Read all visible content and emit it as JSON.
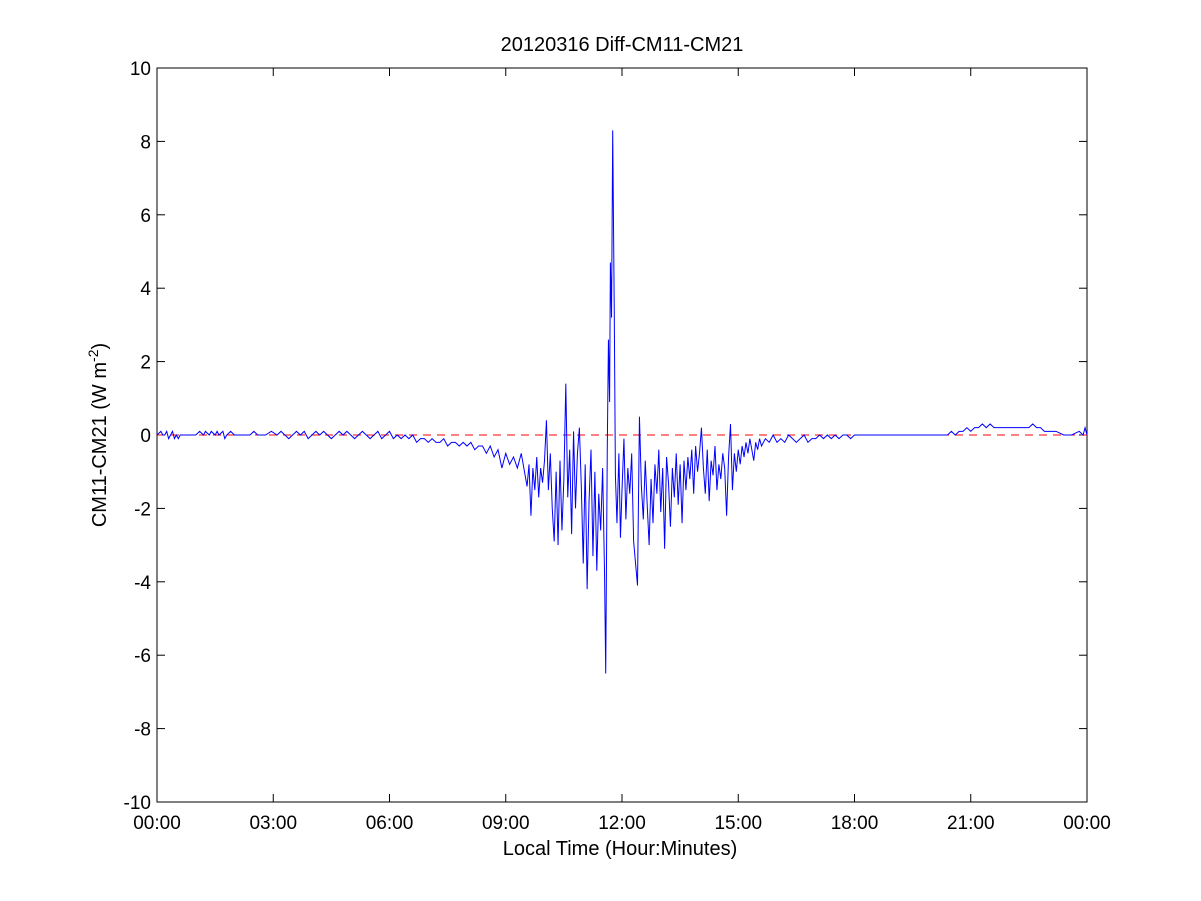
{
  "chart_data": {
    "type": "line",
    "title": "20120316 Diff-CM11-CM21",
    "xlabel": "Local Time (Hour:Minutes)",
    "ylabel": {
      "main": "CM11-CM21 (W m",
      "superscript": "-2",
      "close": ")"
    },
    "xlim_hours": [
      0,
      24
    ],
    "ylim": [
      -10,
      10
    ],
    "x_ticks": [
      {
        "hour": 0,
        "label": "00:00"
      },
      {
        "hour": 3,
        "label": "03:00"
      },
      {
        "hour": 6,
        "label": "06:00"
      },
      {
        "hour": 9,
        "label": "09:00"
      },
      {
        "hour": 12,
        "label": "12:00"
      },
      {
        "hour": 15,
        "label": "15:00"
      },
      {
        "hour": 18,
        "label": "18:00"
      },
      {
        "hour": 21,
        "label": "21:00"
      },
      {
        "hour": 24,
        "label": "00:00"
      }
    ],
    "y_ticks": [
      {
        "value": 10,
        "label": "10"
      },
      {
        "value": 8,
        "label": "8"
      },
      {
        "value": 6,
        "label": "6"
      },
      {
        "value": 4,
        "label": "4"
      },
      {
        "value": 2,
        "label": "2"
      },
      {
        "value": 0,
        "label": "0"
      },
      {
        "value": -2,
        "label": "-2"
      },
      {
        "value": -4,
        "label": "-4"
      },
      {
        "value": -6,
        "label": "-6"
      },
      {
        "value": -8,
        "label": "-8"
      },
      {
        "value": -10,
        "label": "-10"
      }
    ],
    "grid": false,
    "reference_line": {
      "y": 0,
      "style": "dashed",
      "color": "#ff0000"
    },
    "series": [
      {
        "color": "#0000ff",
        "points": [
          [
            0.0,
            0.0
          ],
          [
            0.1,
            0.1
          ],
          [
            0.15,
            0.0
          ],
          [
            0.2,
            0.0
          ],
          [
            0.25,
            0.1
          ],
          [
            0.3,
            -0.1
          ],
          [
            0.35,
            0.0
          ],
          [
            0.4,
            0.1
          ],
          [
            0.45,
            -0.1
          ],
          [
            0.5,
            0.0
          ],
          [
            0.55,
            -0.1
          ],
          [
            0.6,
            0.0
          ],
          [
            0.7,
            0.0
          ],
          [
            0.8,
            0.0
          ],
          [
            0.9,
            0.0
          ],
          [
            1.0,
            0.0
          ],
          [
            1.1,
            0.1
          ],
          [
            1.2,
            0.0
          ],
          [
            1.25,
            0.1
          ],
          [
            1.35,
            0.0
          ],
          [
            1.4,
            0.1
          ],
          [
            1.5,
            0.0
          ],
          [
            1.55,
            0.1
          ],
          [
            1.6,
            0.0
          ],
          [
            1.7,
            0.1
          ],
          [
            1.75,
            -0.1
          ],
          [
            1.8,
            0.0
          ],
          [
            1.9,
            0.1
          ],
          [
            2.0,
            0.0
          ],
          [
            2.2,
            0.0
          ],
          [
            2.4,
            0.0
          ],
          [
            2.5,
            0.1
          ],
          [
            2.6,
            0.0
          ],
          [
            2.8,
            0.0
          ],
          [
            2.95,
            0.1
          ],
          [
            3.1,
            0.0
          ],
          [
            3.2,
            0.1
          ],
          [
            3.3,
            0.0
          ],
          [
            3.4,
            -0.1
          ],
          [
            3.5,
            0.0
          ],
          [
            3.6,
            0.1
          ],
          [
            3.7,
            0.0
          ],
          [
            3.8,
            0.1
          ],
          [
            3.9,
            -0.1
          ],
          [
            4.0,
            0.0
          ],
          [
            4.1,
            0.1
          ],
          [
            4.2,
            0.0
          ],
          [
            4.3,
            0.1
          ],
          [
            4.4,
            0.0
          ],
          [
            4.5,
            -0.1
          ],
          [
            4.6,
            0.0
          ],
          [
            4.7,
            0.1
          ],
          [
            4.8,
            0.0
          ],
          [
            4.9,
            0.1
          ],
          [
            5.0,
            0.0
          ],
          [
            5.1,
            -0.1
          ],
          [
            5.2,
            0.0
          ],
          [
            5.3,
            0.1
          ],
          [
            5.4,
            0.0
          ],
          [
            5.5,
            -0.1
          ],
          [
            5.6,
            0.0
          ],
          [
            5.7,
            0.1
          ],
          [
            5.8,
            -0.1
          ],
          [
            5.9,
            0.0
          ],
          [
            6.0,
            0.1
          ],
          [
            6.1,
            -0.1
          ],
          [
            6.2,
            0.0
          ],
          [
            6.3,
            -0.1
          ],
          [
            6.4,
            0.0
          ],
          [
            6.5,
            -0.1
          ],
          [
            6.6,
            0.0
          ],
          [
            6.7,
            -0.2
          ],
          [
            6.8,
            -0.1
          ],
          [
            6.9,
            -0.1
          ],
          [
            7.0,
            -0.2
          ],
          [
            7.1,
            -0.1
          ],
          [
            7.2,
            -0.2
          ],
          [
            7.3,
            -0.2
          ],
          [
            7.4,
            -0.1
          ],
          [
            7.5,
            -0.3
          ],
          [
            7.6,
            -0.2
          ],
          [
            7.7,
            -0.2
          ],
          [
            7.8,
            -0.3
          ],
          [
            7.9,
            -0.2
          ],
          [
            8.0,
            -0.3
          ],
          [
            8.1,
            -0.2
          ],
          [
            8.2,
            -0.4
          ],
          [
            8.3,
            -0.3
          ],
          [
            8.4,
            -0.3
          ],
          [
            8.5,
            -0.5
          ],
          [
            8.6,
            -0.3
          ],
          [
            8.7,
            -0.6
          ],
          [
            8.8,
            -0.4
          ],
          [
            8.9,
            -0.9
          ],
          [
            9.0,
            -0.5
          ],
          [
            9.1,
            -0.8
          ],
          [
            9.2,
            -0.6
          ],
          [
            9.3,
            -0.9
          ],
          [
            9.4,
            -0.5
          ],
          [
            9.5,
            -1.1
          ],
          [
            9.55,
            -1.4
          ],
          [
            9.6,
            -0.8
          ],
          [
            9.65,
            -2.2
          ],
          [
            9.7,
            -0.9
          ],
          [
            9.75,
            -1.5
          ],
          [
            9.8,
            -0.6
          ],
          [
            9.85,
            -1.7
          ],
          [
            9.9,
            -0.9
          ],
          [
            9.95,
            -1.3
          ],
          [
            10.0,
            -0.7
          ],
          [
            10.05,
            0.4
          ],
          [
            10.1,
            -1.5
          ],
          [
            10.15,
            -0.5
          ],
          [
            10.2,
            -2.0
          ],
          [
            10.25,
            -2.9
          ],
          [
            10.3,
            -1.0
          ],
          [
            10.35,
            -3.0
          ],
          [
            10.4,
            -0.7
          ],
          [
            10.45,
            -2.6
          ],
          [
            10.5,
            -1.2
          ],
          [
            10.55,
            1.4
          ],
          [
            10.6,
            -1.7
          ],
          [
            10.65,
            -0.4
          ],
          [
            10.7,
            -2.7
          ],
          [
            10.75,
            0.1
          ],
          [
            10.8,
            -2.0
          ],
          [
            10.85,
            -0.5
          ],
          [
            10.9,
            0.2
          ],
          [
            10.95,
            -1.4
          ],
          [
            11.0,
            -3.5
          ],
          [
            11.05,
            -0.8
          ],
          [
            11.1,
            -4.2
          ],
          [
            11.15,
            -1.8
          ],
          [
            11.2,
            -0.4
          ],
          [
            11.25,
            -3.3
          ],
          [
            11.3,
            -1.0
          ],
          [
            11.35,
            -3.7
          ],
          [
            11.4,
            -1.6
          ],
          [
            11.45,
            -2.6
          ],
          [
            11.5,
            -0.9
          ],
          [
            11.55,
            -3.8
          ],
          [
            11.58,
            -6.5
          ],
          [
            11.62,
            -0.4
          ],
          [
            11.65,
            2.6
          ],
          [
            11.68,
            0.9
          ],
          [
            11.7,
            4.7
          ],
          [
            11.73,
            3.2
          ],
          [
            11.76,
            8.3
          ],
          [
            11.8,
            3.4
          ],
          [
            11.83,
            -1.1
          ],
          [
            11.87,
            -2.4
          ],
          [
            11.92,
            -0.5
          ],
          [
            11.96,
            -2.8
          ],
          [
            12.0,
            -1.5
          ],
          [
            12.05,
            -0.1
          ],
          [
            12.1,
            -2.3
          ],
          [
            12.15,
            -0.9
          ],
          [
            12.2,
            -1.6
          ],
          [
            12.25,
            -0.5
          ],
          [
            12.3,
            -2.9
          ],
          [
            12.35,
            -3.5
          ],
          [
            12.4,
            -4.1
          ],
          [
            12.45,
            0.5
          ],
          [
            12.5,
            -1.4
          ],
          [
            12.55,
            -2.3
          ],
          [
            12.6,
            -0.7
          ],
          [
            12.65,
            -1.9
          ],
          [
            12.7,
            -3.0
          ],
          [
            12.75,
            -1.2
          ],
          [
            12.8,
            -2.4
          ],
          [
            12.85,
            -0.8
          ],
          [
            12.9,
            -1.6
          ],
          [
            12.95,
            -0.4
          ],
          [
            13.0,
            -2.1
          ],
          [
            13.05,
            -0.9
          ],
          [
            13.1,
            -3.1
          ],
          [
            13.15,
            -0.6
          ],
          [
            13.2,
            -1.3
          ],
          [
            13.25,
            -2.5
          ],
          [
            13.3,
            -0.9
          ],
          [
            13.35,
            -1.7
          ],
          [
            13.4,
            -0.5
          ],
          [
            13.45,
            -1.9
          ],
          [
            13.5,
            -0.8
          ],
          [
            13.55,
            -2.4
          ],
          [
            13.6,
            -0.7
          ],
          [
            13.65,
            -1.5
          ],
          [
            13.7,
            -0.6
          ],
          [
            13.75,
            -1.2
          ],
          [
            13.8,
            -0.4
          ],
          [
            13.85,
            -1.6
          ],
          [
            13.9,
            -0.3
          ],
          [
            13.95,
            -1.0
          ],
          [
            14.0,
            -0.5
          ],
          [
            14.05,
            0.2
          ],
          [
            14.1,
            -0.9
          ],
          [
            14.15,
            -1.6
          ],
          [
            14.2,
            -0.4
          ],
          [
            14.25,
            -1.8
          ],
          [
            14.3,
            -0.7
          ],
          [
            14.35,
            -1.1
          ],
          [
            14.4,
            -0.3
          ],
          [
            14.45,
            -1.5
          ],
          [
            14.5,
            -0.8
          ],
          [
            14.55,
            -1.2
          ],
          [
            14.6,
            -0.5
          ],
          [
            14.65,
            -0.9
          ],
          [
            14.7,
            -2.2
          ],
          [
            14.75,
            -0.6
          ],
          [
            14.8,
            0.3
          ],
          [
            14.85,
            -1.5
          ],
          [
            14.9,
            -0.5
          ],
          [
            14.95,
            -1.0
          ],
          [
            15.0,
            -0.4
          ],
          [
            15.05,
            -0.8
          ],
          [
            15.1,
            -0.3
          ],
          [
            15.15,
            -0.6
          ],
          [
            15.2,
            -0.2
          ],
          [
            15.25,
            -0.5
          ],
          [
            15.3,
            -0.1
          ],
          [
            15.35,
            -0.4
          ],
          [
            15.4,
            -0.7
          ],
          [
            15.45,
            -0.2
          ],
          [
            15.5,
            -0.4
          ],
          [
            15.55,
            -0.1
          ],
          [
            15.6,
            -0.3
          ],
          [
            15.7,
            -0.1
          ],
          [
            15.8,
            -0.2
          ],
          [
            15.9,
            0.0
          ],
          [
            16.0,
            -0.2
          ],
          [
            16.1,
            -0.1
          ],
          [
            16.2,
            -0.2
          ],
          [
            16.3,
            0.0
          ],
          [
            16.4,
            -0.1
          ],
          [
            16.5,
            -0.2
          ],
          [
            16.6,
            -0.1
          ],
          [
            16.7,
            0.0
          ],
          [
            16.8,
            -0.2
          ],
          [
            16.9,
            -0.1
          ],
          [
            17.0,
            -0.1
          ],
          [
            17.1,
            0.0
          ],
          [
            17.2,
            -0.1
          ],
          [
            17.3,
            0.0
          ],
          [
            17.4,
            -0.1
          ],
          [
            17.5,
            0.0
          ],
          [
            17.6,
            -0.1
          ],
          [
            17.7,
            0.0
          ],
          [
            17.8,
            0.0
          ],
          [
            17.9,
            -0.1
          ],
          [
            18.0,
            0.0
          ],
          [
            18.2,
            0.0
          ],
          [
            18.4,
            0.0
          ],
          [
            18.6,
            0.0
          ],
          [
            18.8,
            0.0
          ],
          [
            19.0,
            0.0
          ],
          [
            19.2,
            0.0
          ],
          [
            19.4,
            0.0
          ],
          [
            19.6,
            0.0
          ],
          [
            19.8,
            0.0
          ],
          [
            20.0,
            0.0
          ],
          [
            20.2,
            0.0
          ],
          [
            20.4,
            0.0
          ],
          [
            20.5,
            0.1
          ],
          [
            20.6,
            0.0
          ],
          [
            20.7,
            0.1
          ],
          [
            20.8,
            0.1
          ],
          [
            20.9,
            0.2
          ],
          [
            21.0,
            0.1
          ],
          [
            21.1,
            0.2
          ],
          [
            21.2,
            0.2
          ],
          [
            21.3,
            0.3
          ],
          [
            21.4,
            0.2
          ],
          [
            21.5,
            0.3
          ],
          [
            21.6,
            0.2
          ],
          [
            21.7,
            0.2
          ],
          [
            21.8,
            0.2
          ],
          [
            21.9,
            0.2
          ],
          [
            22.0,
            0.2
          ],
          [
            22.1,
            0.2
          ],
          [
            22.2,
            0.2
          ],
          [
            22.3,
            0.2
          ],
          [
            22.4,
            0.2
          ],
          [
            22.5,
            0.2
          ],
          [
            22.6,
            0.3
          ],
          [
            22.7,
            0.2
          ],
          [
            22.8,
            0.2
          ],
          [
            22.9,
            0.1
          ],
          [
            23.0,
            0.1
          ],
          [
            23.2,
            0.1
          ],
          [
            23.4,
            0.0
          ],
          [
            23.6,
            0.0
          ],
          [
            23.8,
            0.1
          ],
          [
            23.9,
            0.0
          ],
          [
            23.95,
            0.2
          ],
          [
            24.0,
            0.0
          ]
        ]
      }
    ]
  }
}
